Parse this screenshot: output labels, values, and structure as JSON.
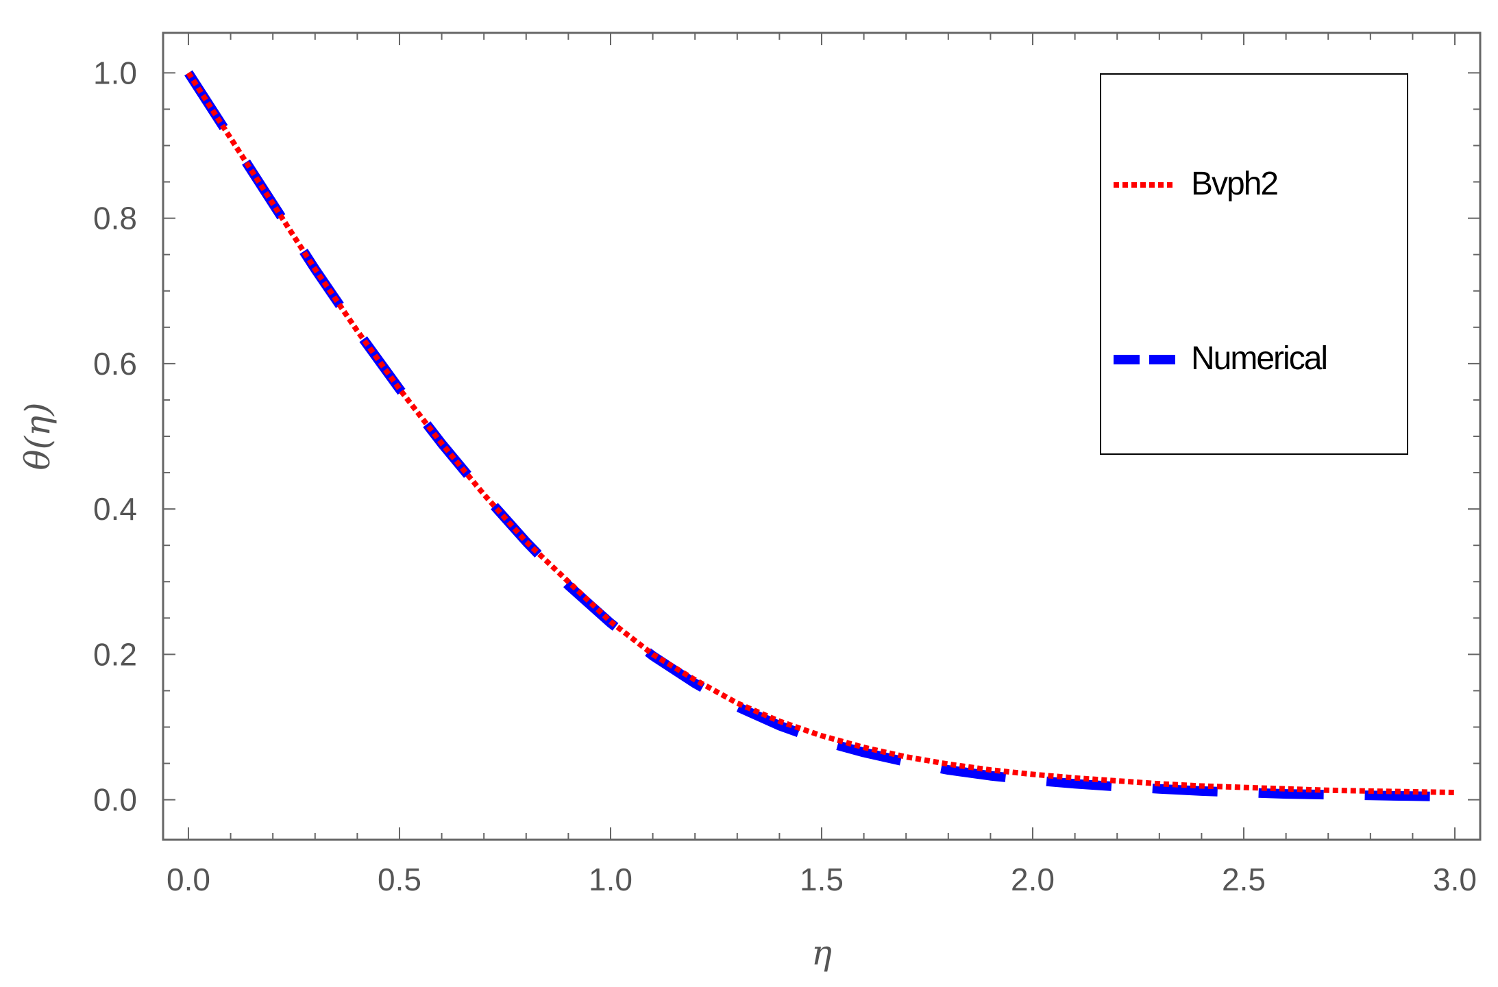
{
  "chart_data": {
    "type": "line",
    "xlabel": "η",
    "ylabel": "θ(η)",
    "xlim": [
      -0.06,
      3.06
    ],
    "ylim": [
      -0.055,
      1.055
    ],
    "xticks": [
      "0.0",
      "0.5",
      "1.0",
      "1.5",
      "2.0",
      "2.5",
      "3.0"
    ],
    "yticks": [
      "0.0",
      "0.2",
      "0.4",
      "0.6",
      "0.8",
      "1.0"
    ],
    "x": [
      0.0,
      0.1,
      0.2,
      0.3,
      0.4,
      0.5,
      0.6,
      0.7,
      0.8,
      0.9,
      1.0,
      1.1,
      1.2,
      1.3,
      1.4,
      1.5,
      1.6,
      1.7,
      1.8,
      1.9,
      2.0,
      2.1,
      2.2,
      2.3,
      2.4,
      2.5,
      2.6,
      2.7,
      2.8,
      2.9,
      3.0
    ],
    "series": [
      {
        "name": "Bvph2",
        "color": "#ff0000",
        "style": "dotted",
        "values": [
          1.0,
          0.91,
          0.82,
          0.73,
          0.645,
          0.565,
          0.49,
          0.42,
          0.355,
          0.3,
          0.245,
          0.2,
          0.165,
          0.133,
          0.108,
          0.088,
          0.072,
          0.059,
          0.049,
          0.041,
          0.035,
          0.03,
          0.026,
          0.022,
          0.019,
          0.017,
          0.015,
          0.013,
          0.012,
          0.011,
          0.01
        ]
      },
      {
        "name": "Numerical",
        "color": "#0000ff",
        "style": "dashed",
        "values": [
          1.0,
          0.91,
          0.82,
          0.73,
          0.645,
          0.565,
          0.49,
          0.42,
          0.355,
          0.295,
          0.243,
          0.198,
          0.16,
          0.128,
          0.102,
          0.081,
          0.065,
          0.052,
          0.041,
          0.033,
          0.027,
          0.022,
          0.018,
          0.015,
          0.012,
          0.01,
          0.008,
          0.007,
          0.006,
          0.005,
          0.004
        ]
      }
    ],
    "legend": "top-right",
    "grid": false
  }
}
